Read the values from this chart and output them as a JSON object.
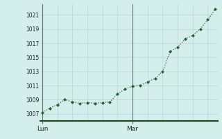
{
  "x_values": [
    0,
    1,
    2,
    3,
    4,
    5,
    6,
    7,
    8,
    9,
    10,
    11,
    12,
    13,
    14,
    15,
    16,
    17,
    18,
    19,
    20,
    21,
    22,
    23
  ],
  "y_values": [
    1007.2,
    1007.8,
    1008.3,
    1009.0,
    1008.7,
    1008.5,
    1008.6,
    1008.5,
    1008.6,
    1008.7,
    1009.8,
    1010.5,
    1010.9,
    1011.0,
    1011.5,
    1012.0,
    1013.0,
    1015.8,
    1016.4,
    1017.6,
    1018.1,
    1019.0,
    1020.3,
    1021.8
  ],
  "xtick_day_positions": [
    0,
    12
  ],
  "xtick_day_labels": [
    "Lun",
    "Mar"
  ],
  "ytick_values": [
    1007,
    1009,
    1011,
    1013,
    1015,
    1017,
    1019,
    1021
  ],
  "ylim": [
    1006.0,
    1022.5
  ],
  "xlim": [
    -0.3,
    23.3
  ],
  "n_points": 24,
  "line_color": "#2a5f2a",
  "marker_color": "#2a5f2a",
  "bg_color": "#d4eeec",
  "grid_h_color": "#c0d8d5",
  "grid_v_color": "#c0d8d5",
  "axis_color": "#1a4a1a",
  "vline_color": "#607070",
  "vline_positions": [
    0,
    12
  ]
}
